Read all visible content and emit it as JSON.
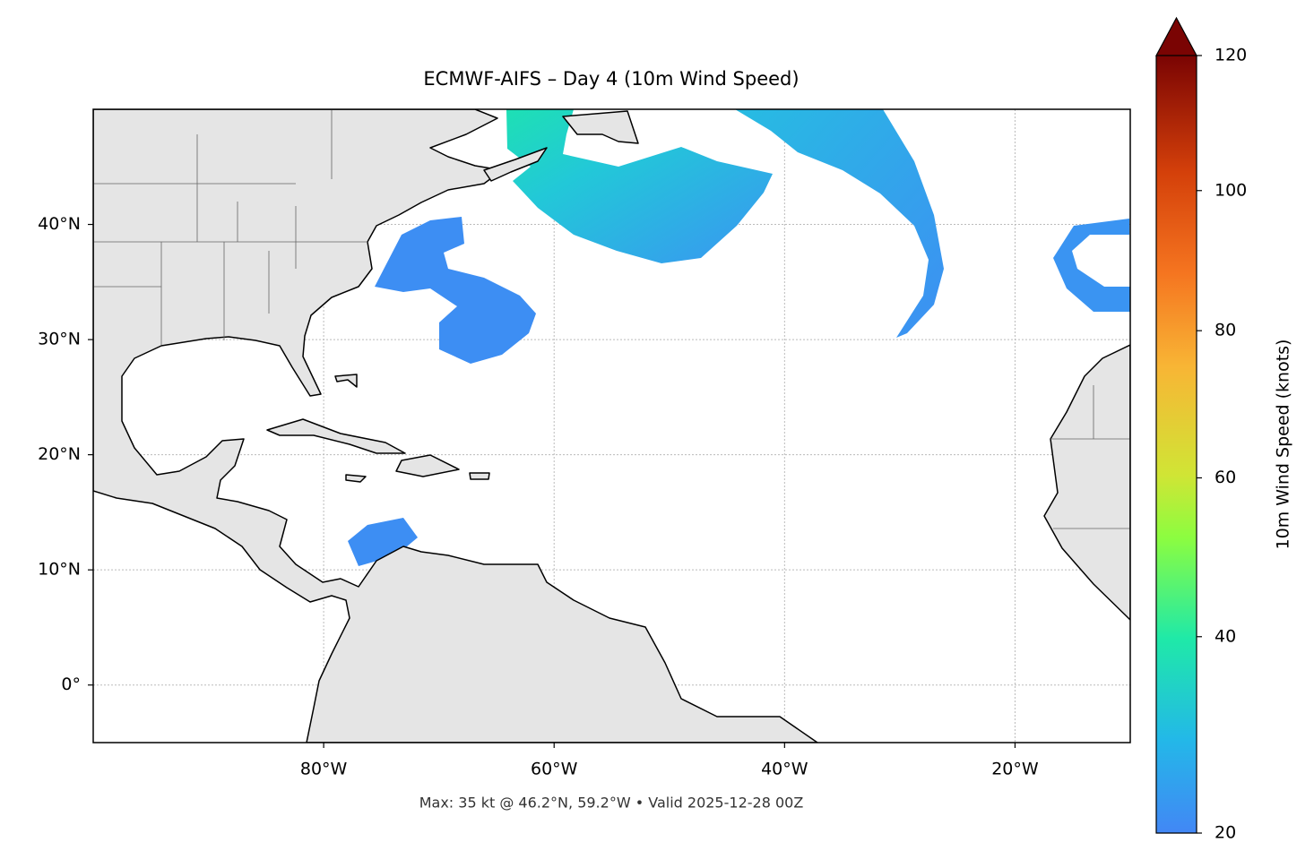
{
  "title": "ECMWF-AIFS – Day 4 (10m Wind Speed)",
  "footer": "Max: 35 kt @ 46.2°N, 59.2°W • Valid 2025-12-28 00Z",
  "map": {
    "xlim": [
      -100,
      -10
    ],
    "ylim": [
      -5,
      50
    ],
    "grid": true,
    "xticks": [
      {
        "value": -80,
        "label": "80°W"
      },
      {
        "value": -60,
        "label": "60°W"
      },
      {
        "value": -40,
        "label": "40°W"
      },
      {
        "value": -20,
        "label": "20°W"
      }
    ],
    "yticks": [
      {
        "value": 0,
        "label": "0°"
      },
      {
        "value": 10,
        "label": "10°N"
      },
      {
        "value": 20,
        "label": "20°N"
      },
      {
        "value": 30,
        "label": "30°N"
      },
      {
        "value": 40,
        "label": "40°N"
      }
    ]
  },
  "colorbar": {
    "label": "10m Wind Speed (knots)",
    "range": [
      20,
      120
    ],
    "ticks": [
      20,
      40,
      60,
      80,
      100,
      120
    ],
    "extend": "max",
    "norm": {
      "type": "power",
      "gamma": 0.855
    }
  }
}
